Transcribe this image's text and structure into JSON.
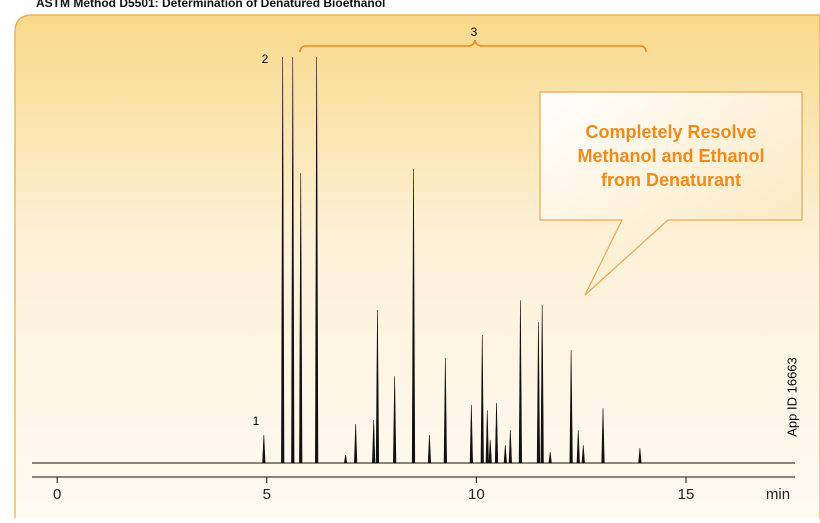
{
  "chart_data": {
    "type": "line",
    "title": "ASTM Method D5501: Determination of Denatured Bioethanol",
    "x_label": "min",
    "peak_labels": [
      "1",
      "2",
      "3"
    ],
    "callout": [
      "Completely Resolve",
      "Methanol and Ethanol",
      "from Denaturant"
    ],
    "side_note": "App ID 16663",
    "x": [
      4.93,
      5.38,
      5.62,
      5.81,
      6.19,
      6.88,
      7.12,
      7.55,
      7.64,
      8.05,
      8.5,
      8.88,
      9.26,
      9.88,
      10.14,
      10.26,
      10.33,
      10.48,
      10.69,
      10.81,
      11.05,
      11.48,
      11.57,
      11.76,
      12.26,
      12.43,
      12.55,
      13.02,
      13.9
    ],
    "values": [
      6.9,
      100,
      100,
      71.4,
      100,
      2,
      9.6,
      10.6,
      37.7,
      21.4,
      72.4,
      6.9,
      25.9,
      14.3,
      31.5,
      13,
      5.7,
      14.8,
      4.4,
      8.1,
      40.1,
      34.7,
      38.9,
      2.7,
      27.8,
      8.1,
      4.4,
      13.5,
      3.7
    ],
    "color": "#111111",
    "xlim": [
      -0.6,
      17.6
    ],
    "ylim": [
      0,
      100
    ],
    "xticks": [
      0,
      5,
      10,
      15
    ]
  }
}
